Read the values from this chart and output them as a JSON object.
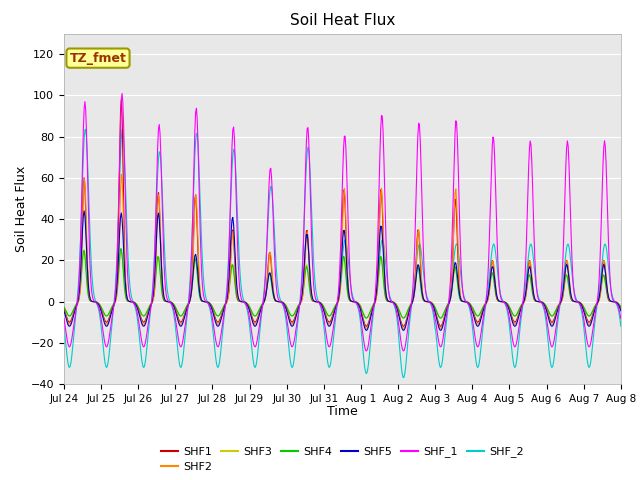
{
  "title": "Soil Heat Flux",
  "xlabel": "Time",
  "ylabel": "Soil Heat Flux",
  "ylim": [
    -40,
    130
  ],
  "yticks": [
    -40,
    -20,
    0,
    20,
    40,
    60,
    80,
    100,
    120
  ],
  "plot_bg_color": "#e8e8e8",
  "series": {
    "SHF1": {
      "color": "#cc0000",
      "lw": 0.8
    },
    "SHF2": {
      "color": "#ff8800",
      "lw": 0.8
    },
    "SHF3": {
      "color": "#cccc00",
      "lw": 0.8
    },
    "SHF4": {
      "color": "#00cc00",
      "lw": 0.8
    },
    "SHF5": {
      "color": "#0000cc",
      "lw": 0.8
    },
    "SHF_1": {
      "color": "#ff00ff",
      "lw": 0.8
    },
    "SHF_2": {
      "color": "#00cccc",
      "lw": 0.8
    }
  },
  "annotation": {
    "text": "TZ_fmet",
    "facecolor": "#ffff99",
    "edgecolor": "#999900",
    "textcolor": "#993300",
    "fontsize": 9
  },
  "n_days": 15,
  "peaks_shf1": [
    60,
    98,
    53,
    52,
    35,
    24,
    35,
    55,
    55,
    35,
    50,
    20,
    20,
    20,
    20
  ],
  "peaks_shf2": [
    60,
    62,
    52,
    52,
    34,
    24,
    34,
    55,
    55,
    35,
    55,
    20,
    20,
    20,
    20
  ],
  "peaks_shf3": [
    25,
    25,
    22,
    21,
    18,
    14,
    18,
    22,
    22,
    17,
    17,
    14,
    13,
    13,
    13
  ],
  "peaks_shf4": [
    25,
    26,
    22,
    21,
    18,
    14,
    17,
    22,
    22,
    17,
    17,
    14,
    13,
    13,
    13
  ],
  "peaks_shf5": [
    44,
    43,
    43,
    23,
    41,
    14,
    33,
    35,
    37,
    18,
    19,
    17,
    17,
    18,
    18
  ],
  "peaks_shf_1": [
    97,
    101,
    86,
    94,
    85,
    65,
    85,
    81,
    91,
    87,
    88,
    80,
    78,
    78,
    78
  ],
  "peaks_shf_2": [
    84,
    84,
    73,
    82,
    74,
    56,
    75,
    30,
    30,
    28,
    28,
    28,
    28,
    28,
    28
  ],
  "troughs_shf1": [
    -10,
    -10,
    -10,
    -10,
    -10,
    -10,
    -10,
    -10,
    -12,
    -12,
    -12,
    -10,
    -10,
    -10,
    -10
  ],
  "troughs_shf2": [
    -11,
    -11,
    -11,
    -11,
    -11,
    -11,
    -11,
    -11,
    -13,
    -13,
    -13,
    -11,
    -11,
    -11,
    -11
  ],
  "troughs_shf3": [
    -7,
    -7,
    -7,
    -7,
    -7,
    -7,
    -7,
    -7,
    -8,
    -8,
    -8,
    -7,
    -7,
    -7,
    -7
  ],
  "troughs_shf4": [
    -7,
    -7,
    -7,
    -7,
    -7,
    -7,
    -7,
    -7,
    -8,
    -8,
    -8,
    -7,
    -7,
    -7,
    -7
  ],
  "troughs_shf5": [
    -12,
    -12,
    -12,
    -12,
    -12,
    -12,
    -12,
    -12,
    -14,
    -14,
    -14,
    -12,
    -12,
    -12,
    -12
  ],
  "troughs_shf_1": [
    -22,
    -22,
    -22,
    -22,
    -22,
    -22,
    -22,
    -22,
    -24,
    -24,
    -22,
    -22,
    -22,
    -22,
    -22
  ],
  "troughs_shf_2": [
    -32,
    -32,
    -32,
    -32,
    -32,
    -32,
    -32,
    -32,
    -35,
    -37,
    -32,
    -32,
    -32,
    -32,
    -32
  ]
}
